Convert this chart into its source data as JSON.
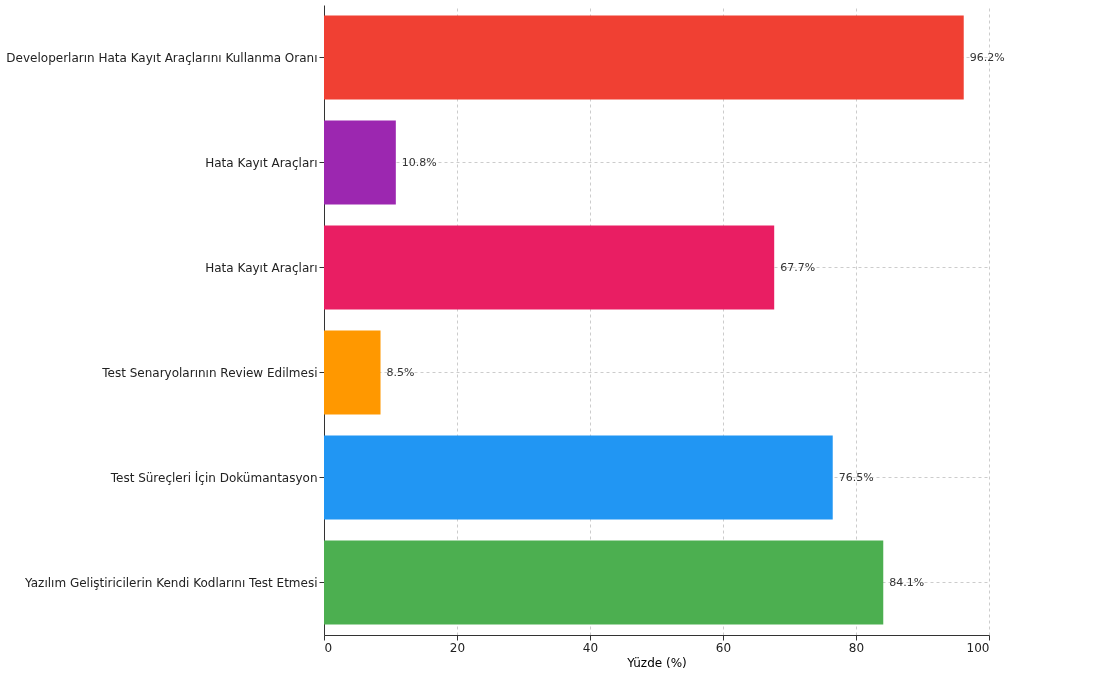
{
  "chart_data": {
    "type": "bar",
    "orientation": "horizontal",
    "xlabel": "Yüzde (%)",
    "categories": [
      "Developerların Hata Kayıt Araçlarını Kullanma Oranı",
      "Hata Kayıt Araçları",
      "Hata Kayıt Araçları",
      "Test Senaryolarının Review Edilmesi",
      "Test Süreçleri İçin Dokümantasyon",
      "Yazılım Geliştiricilerin Kendi Kodlarını Test Etmesi"
    ],
    "values": [
      96.2,
      10.8,
      67.7,
      8.5,
      76.5,
      84.1
    ],
    "colors": [
      "#f04033",
      "#9c27b0",
      "#e91e63",
      "#ff9800",
      "#2196f3",
      "#4caf50"
    ],
    "value_labels": [
      "96.2%",
      "10.8%",
      "67.7%",
      "8.5%",
      "76.5%",
      "84.1%"
    ],
    "xlim": [
      0,
      100
    ],
    "xticks": [
      0,
      20,
      40,
      60,
      80,
      100
    ],
    "grid": true
  }
}
